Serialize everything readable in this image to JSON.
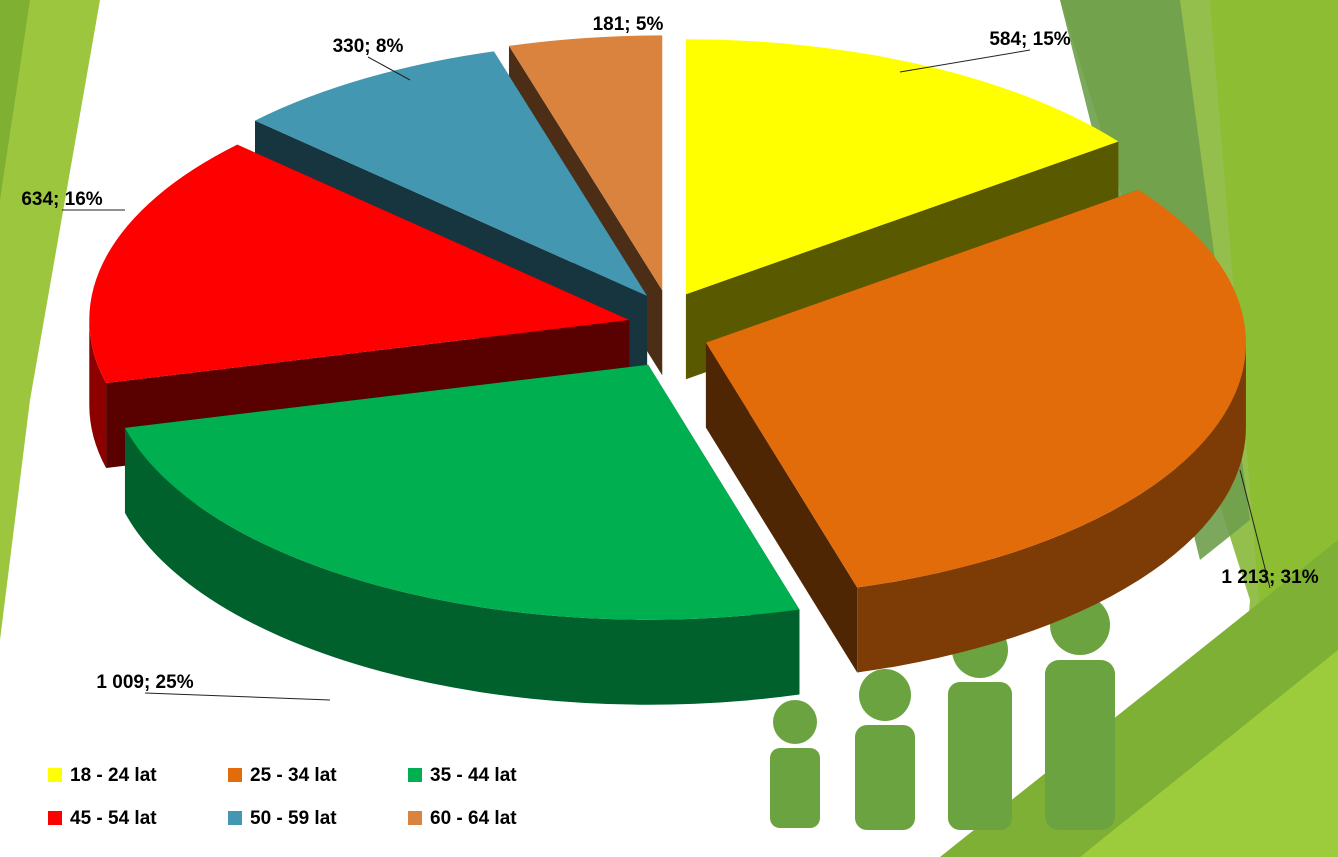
{
  "chart_data": {
    "type": "pie3d",
    "categories": [
      "18 - 24 lat",
      "25 - 34 lat",
      "35 - 44 lat",
      "45 - 54 lat",
      "50 - 59 lat",
      "60 - 64 lat"
    ],
    "values": [
      584,
      1213,
      1009,
      634,
      330,
      181
    ],
    "value_labels": [
      "584; 15%",
      "1 213; 31%",
      "1 009; 25%",
      "634; 16%",
      "330; 8%",
      "181; 5%"
    ],
    "colors": [
      "#ffff00",
      "#e36c0a",
      "#00b050",
      "#ff0000",
      "#4397b1",
      "#d9833f"
    ]
  }
}
